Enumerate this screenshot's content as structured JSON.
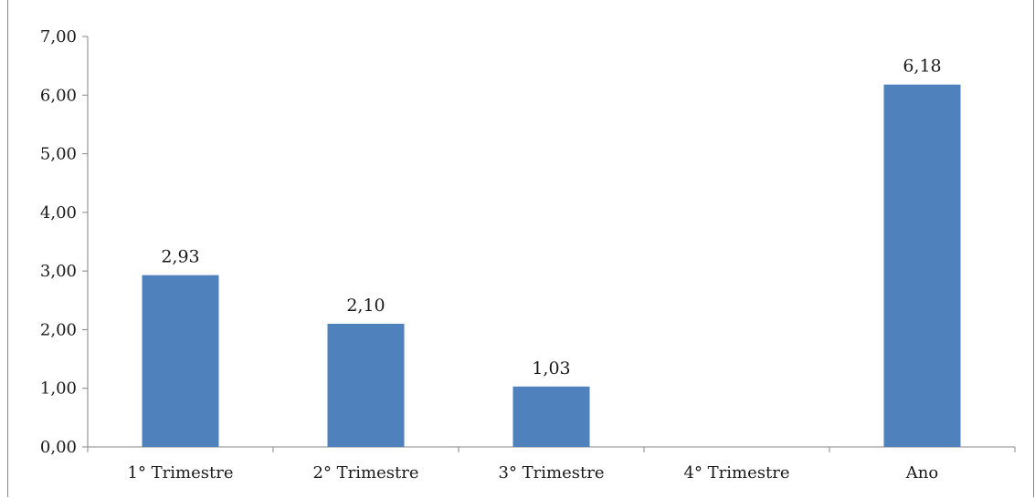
{
  "chart_data": {
    "type": "bar",
    "title": "",
    "xlabel": "",
    "ylabel": "",
    "categories": [
      "1° Trimestre",
      "2° Trimestre",
      "3° Trimestre",
      "4° Trimestre",
      "Ano"
    ],
    "values": [
      2.93,
      2.1,
      1.03,
      null,
      6.18
    ],
    "data_labels": [
      "2,93",
      "2,10",
      "1,03",
      "",
      "6,18"
    ],
    "ylim": [
      0,
      7
    ],
    "yticks": [
      0,
      1,
      2,
      3,
      4,
      5,
      6,
      7
    ],
    "ytick_labels": [
      "0,00",
      "1,00",
      "2,00",
      "3,00",
      "4,00",
      "5,00",
      "6,00",
      "7,00"
    ],
    "grid": false,
    "legend": "none",
    "bar_color": "#4F81BD"
  }
}
